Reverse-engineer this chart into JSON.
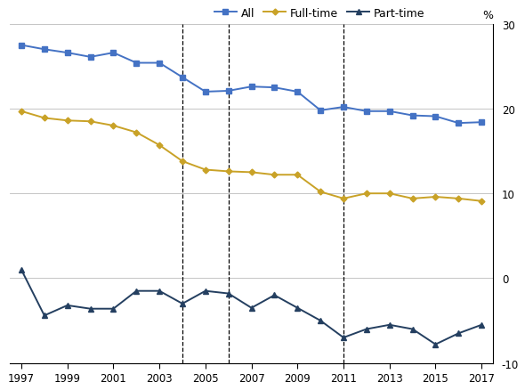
{
  "years": [
    1997,
    1998,
    1999,
    2000,
    2001,
    2002,
    2003,
    2004,
    2005,
    2006,
    2007,
    2008,
    2009,
    2010,
    2011,
    2012,
    2013,
    2014,
    2015,
    2016,
    2017
  ],
  "all": [
    27.5,
    27.0,
    26.6,
    26.1,
    26.6,
    25.4,
    25.4,
    23.7,
    22.0,
    22.1,
    22.6,
    22.5,
    22.0,
    19.8,
    20.2,
    19.7,
    19.7,
    19.2,
    19.1,
    18.3,
    18.4
  ],
  "fulltime": [
    19.7,
    18.9,
    18.6,
    18.5,
    18.0,
    17.2,
    15.7,
    13.8,
    12.8,
    12.6,
    12.5,
    12.2,
    12.2,
    10.2,
    9.4,
    10.0,
    10.0,
    9.4,
    9.6,
    9.4,
    9.1
  ],
  "parttime": [
    1.0,
    -4.4,
    -3.2,
    -3.6,
    -3.6,
    -1.5,
    -1.5,
    -3.0,
    -1.5,
    -1.8,
    -3.5,
    -2.0,
    -3.5,
    -5.0,
    -7.0,
    -6.0,
    -5.5,
    -6.0,
    -7.8,
    -6.5,
    -5.5
  ],
  "dashed_lines": [
    2004,
    2006,
    2011
  ],
  "colors": {
    "all": "#4472C4",
    "fulltime": "#C9A227",
    "parttime": "#243F60"
  },
  "legend_labels": [
    "All",
    "Full-time",
    "Part-time"
  ],
  "ylabel": "%",
  "ylim": [
    -10,
    30
  ],
  "yticks": [
    -10,
    0,
    10,
    20,
    30
  ],
  "xlim_min": 1997,
  "xlim_max": 2017,
  "xticks": [
    1997,
    1999,
    2001,
    2003,
    2005,
    2007,
    2009,
    2011,
    2013,
    2015,
    2017
  ],
  "background_color": "#FFFFFF",
  "grid_color": "#BBBBBB"
}
